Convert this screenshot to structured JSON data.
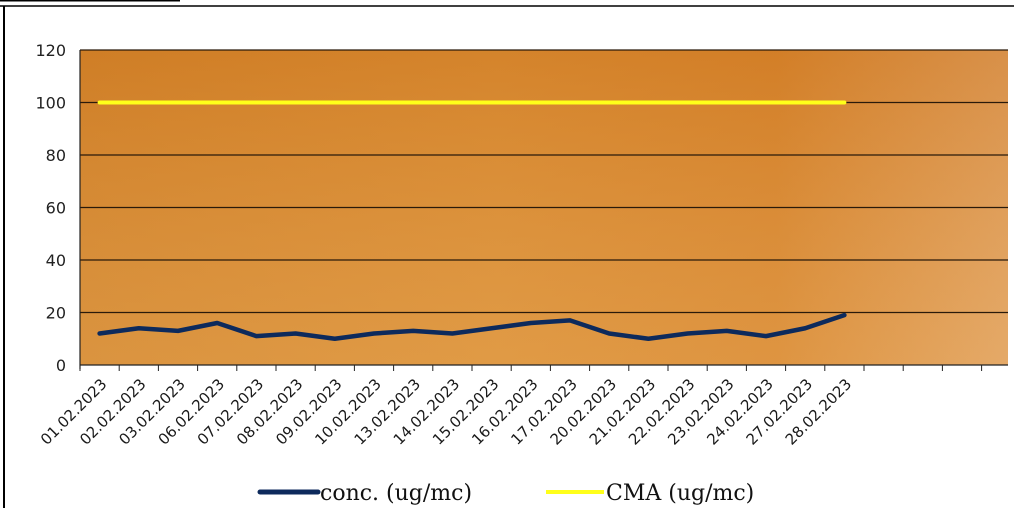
{
  "chart_data": {
    "type": "line",
    "title": "",
    "xlabel": "",
    "ylabel": "",
    "ylim": [
      0,
      120
    ],
    "yticks": [
      0,
      20,
      40,
      60,
      80,
      100,
      120
    ],
    "grid": true,
    "legend_placement": "bottom",
    "plot_background": "#d98a2c",
    "categories": [
      "01.02.2023",
      "02.02.2023",
      "03.02.2023",
      "06.02.2023",
      "07.02.2023",
      "08.02.2023",
      "09.02.2023",
      "10.02.2023",
      "13.02.2023",
      "14.02.2023",
      "15.02.2023",
      "16.02.2023",
      "17.02.2023",
      "20.02.2023",
      "21.02.2023",
      "22.02.2023",
      "23.02.2023",
      "24.02.2023",
      "27.02.2023",
      "28.02.2023"
    ],
    "series": [
      {
        "name": "conc. (ug/mc)",
        "color": "#0d2a5c",
        "values": [
          12,
          14,
          13,
          16,
          11,
          12,
          10,
          12,
          13,
          12,
          14,
          16,
          17,
          12,
          10,
          12,
          13,
          11,
          14,
          19
        ]
      },
      {
        "name": "CMA (ug/mc)",
        "color": "#ffff1a",
        "values": [
          100,
          100,
          100,
          100,
          100,
          100,
          100,
          100,
          100,
          100,
          100,
          100,
          100,
          100,
          100,
          100,
          100,
          100,
          100,
          100
        ]
      }
    ]
  }
}
